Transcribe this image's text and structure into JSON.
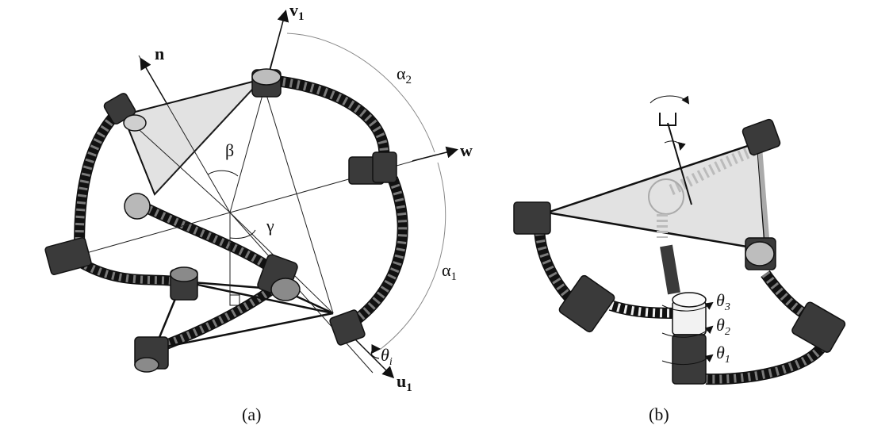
{
  "panel_a": {
    "caption": "(a)",
    "labels": {
      "v1_base": "v",
      "v1_sub": "1",
      "n": "n",
      "w": "w",
      "u1_base": "u",
      "u1_sub": "1",
      "alpha2_base": "α",
      "alpha2_sub": "2",
      "alpha1_base": "α",
      "alpha1_sub": "1",
      "beta": "β",
      "gamma": "γ",
      "theta_i_base": "θ",
      "theta_i_sub": "i"
    }
  },
  "panel_b": {
    "caption": "(b)",
    "labels": {
      "theta3_base": "θ",
      "theta3_sub": "3",
      "theta2_base": "θ",
      "theta2_sub": "2",
      "theta1_base": "θ",
      "theta1_sub": "1"
    }
  },
  "colors": {
    "platform_fill": "#e2e2e2",
    "link": "#5a5a5a",
    "joint": "#3a3a3a",
    "line": "#111111"
  }
}
